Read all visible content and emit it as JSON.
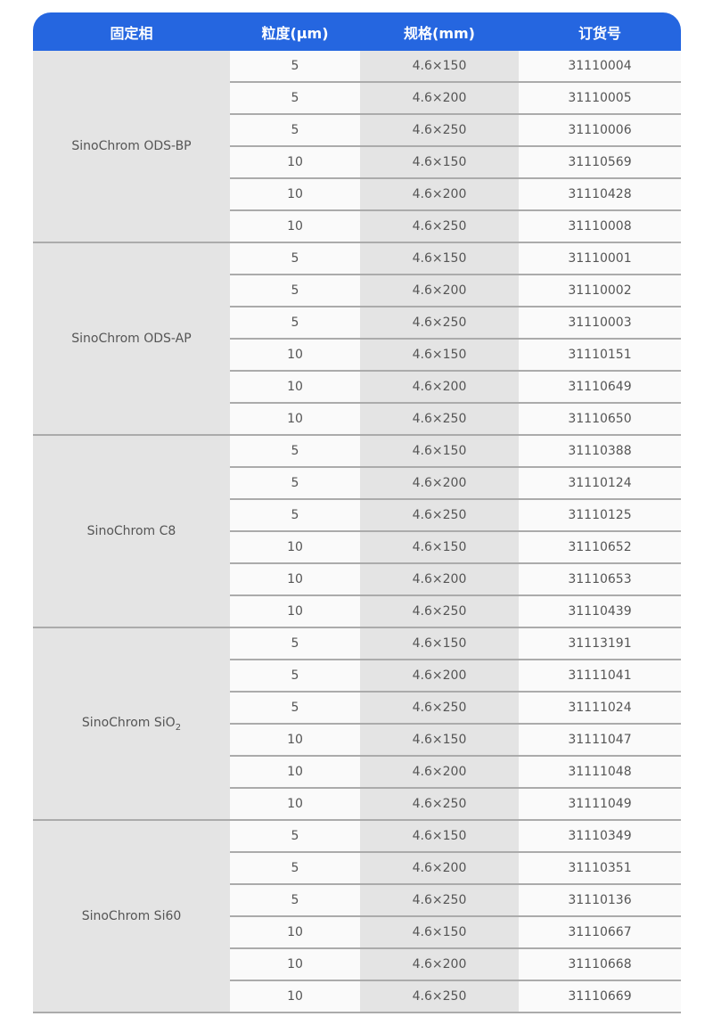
{
  "header": {
    "columns": [
      "固定相",
      "粒度(μm)",
      "规格(mm)",
      "订货号"
    ]
  },
  "colors": {
    "header_bg": "#2566e0",
    "header_text": "#ffffff",
    "shaded": "#e4e4e4",
    "light": "#fafafa",
    "border": "#ababab"
  },
  "groups": [
    {
      "name": "SinoChrom ODS-BP",
      "sub": "",
      "rows": [
        [
          "5",
          "4.6×150",
          "31110004"
        ],
        [
          "5",
          "4.6×200",
          "31110005"
        ],
        [
          "5",
          "4.6×250",
          "31110006"
        ],
        [
          "10",
          "4.6×150",
          "31110569"
        ],
        [
          "10",
          "4.6×200",
          "31110428"
        ],
        [
          "10",
          "4.6×250",
          "31110008"
        ]
      ]
    },
    {
      "name": "SinoChrom ODS-AP",
      "sub": "",
      "rows": [
        [
          "5",
          "4.6×150",
          "31110001"
        ],
        [
          "5",
          "4.6×200",
          "31110002"
        ],
        [
          "5",
          "4.6×250",
          "31110003"
        ],
        [
          "10",
          "4.6×150",
          "31110151"
        ],
        [
          "10",
          "4.6×200",
          "31110649"
        ],
        [
          "10",
          "4.6×250",
          "31110650"
        ]
      ]
    },
    {
      "name": "SinoChrom C8",
      "sub": "",
      "rows": [
        [
          "5",
          "4.6×150",
          "31110388"
        ],
        [
          "5",
          "4.6×200",
          "31110124"
        ],
        [
          "5",
          "4.6×250",
          "31110125"
        ],
        [
          "10",
          "4.6×150",
          "31110652"
        ],
        [
          "10",
          "4.6×200",
          "31110653"
        ],
        [
          "10",
          "4.6×250",
          "31110439"
        ]
      ]
    },
    {
      "name": "SinoChrom SiO",
      "sub": "2",
      "rows": [
        [
          "5",
          "4.6×150",
          "31113191"
        ],
        [
          "5",
          "4.6×200",
          "31111041"
        ],
        [
          "5",
          "4.6×250",
          "31111024"
        ],
        [
          "10",
          "4.6×150",
          "31111047"
        ],
        [
          "10",
          "4.6×200",
          "31111048"
        ],
        [
          "10",
          "4.6×250",
          "31111049"
        ]
      ]
    },
    {
      "name": "SinoChrom Si60",
      "sub": "",
      "rows": [
        [
          "5",
          "4.6×150",
          "31110349"
        ],
        [
          "5",
          "4.6×200",
          "31110351"
        ],
        [
          "5",
          "4.6×250",
          "31110136"
        ],
        [
          "10",
          "4.6×150",
          "31110667"
        ],
        [
          "10",
          "4.6×200",
          "31110668"
        ],
        [
          "10",
          "4.6×250",
          "31110669"
        ]
      ]
    }
  ]
}
